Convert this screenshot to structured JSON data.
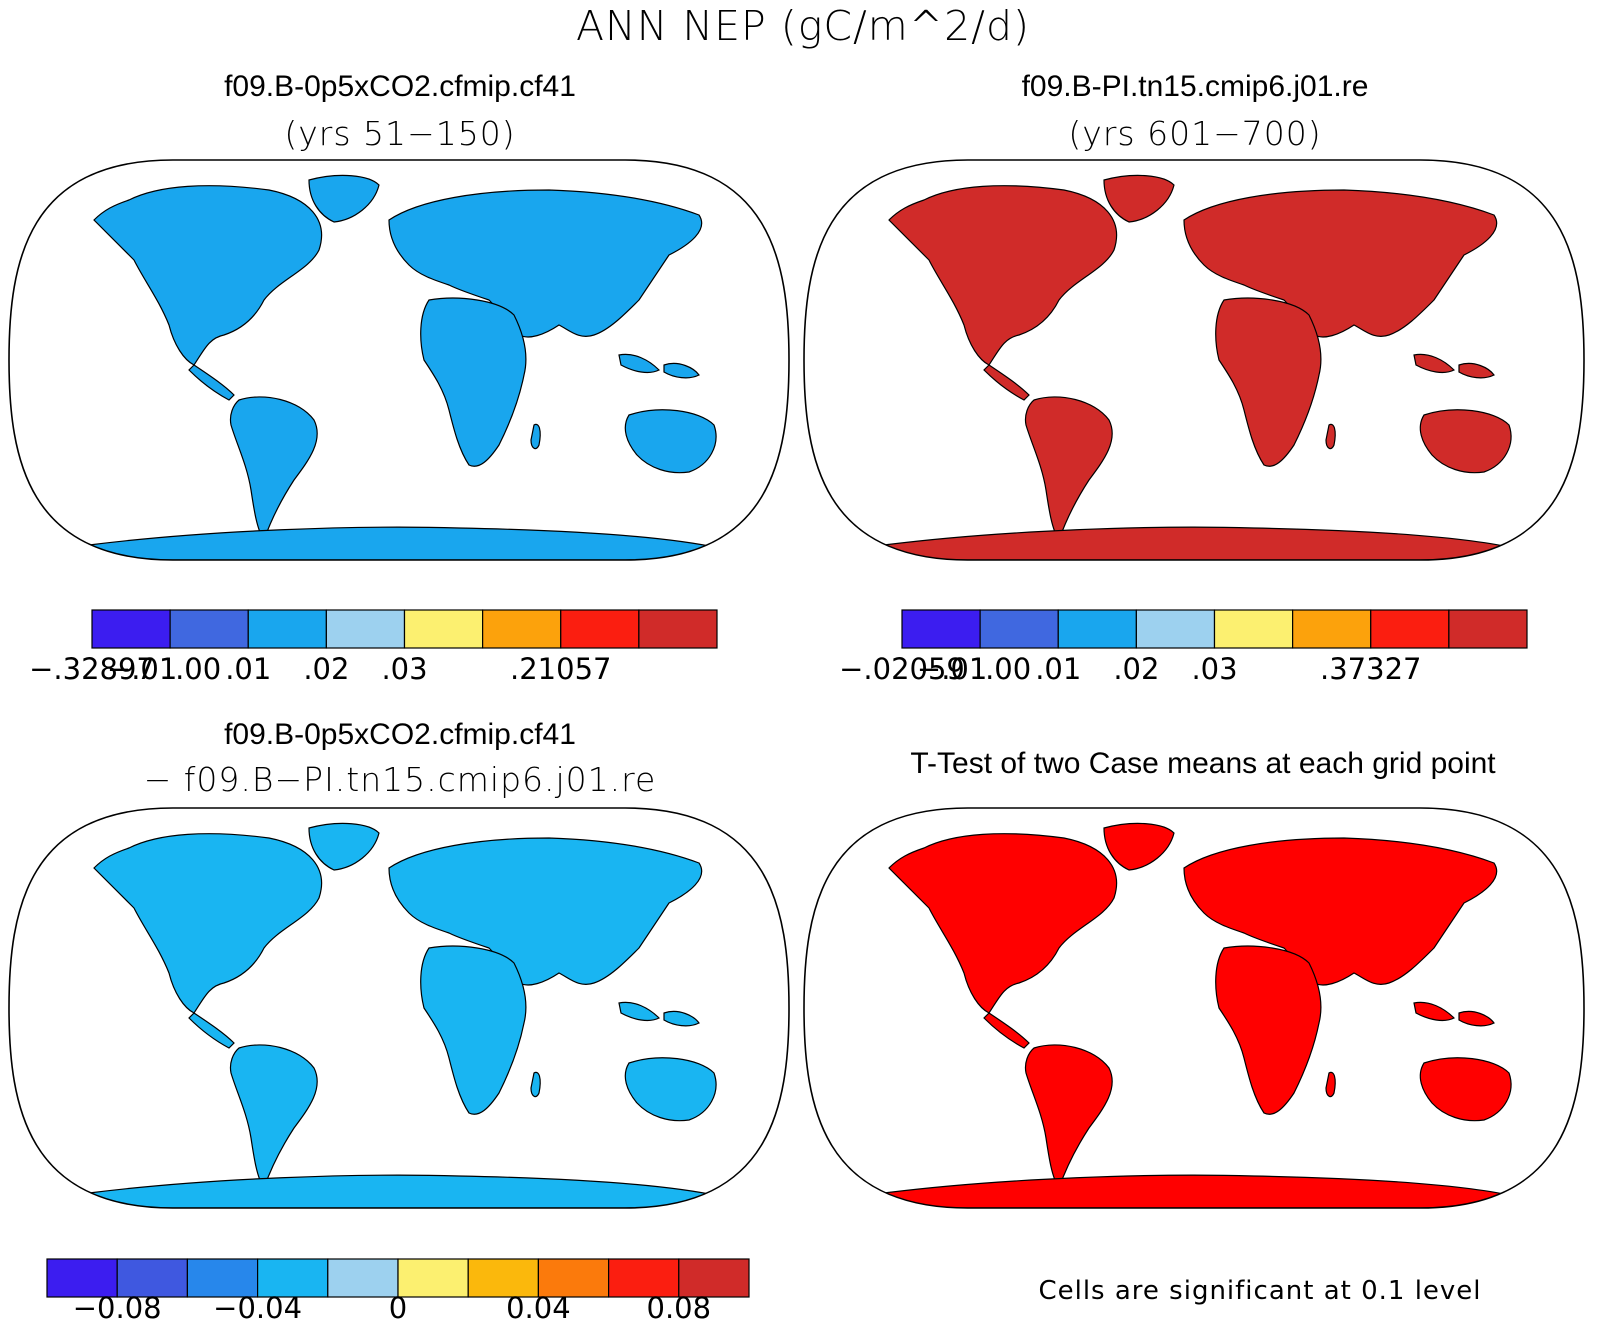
{
  "title": "ANN NEP (gC/m^2/d)",
  "panels": [
    {
      "id": "case1",
      "title": "f09.B-0p5xCO2.cfmip.cf41",
      "subtitle": "(yrs 51−150)",
      "colorbar": {
        "colors": [
          "#3c1df0",
          "#4068e0",
          "#19a6ee",
          "#9dd1ef",
          "#fcf070",
          "#fca20c",
          "#fb1e10",
          "#d02b29"
        ],
        "labels": [
          "−.32897",
          "−.01",
          ".00",
          ".01",
          ".02",
          ".03",
          ".21057"
        ]
      }
    },
    {
      "id": "case2",
      "title": "f09.B-PI.tn15.cmip6.j01.re",
      "subtitle": "(yrs 601−700)",
      "colorbar": {
        "colors": [
          "#3c1df0",
          "#4068e0",
          "#19a6ee",
          "#9dd1ef",
          "#fcf070",
          "#fca20c",
          "#fb1e10",
          "#d02b29"
        ],
        "labels": [
          "−.02059",
          "−.01",
          ".00",
          ".01",
          ".02",
          ".03",
          ".37327"
        ]
      }
    },
    {
      "id": "diff",
      "title": "f09.B-0p5xCO2.cfmip.cf41",
      "subtitle": "− f09.B−PI.tn15.cmip6.j01.re",
      "colorbar": {
        "colors": [
          "#3c1df0",
          "#3f58e0",
          "#2787eb",
          "#19b5f2",
          "#9dd1ef",
          "#fcf070",
          "#fbb80c",
          "#fb7a0c",
          "#fb1e10",
          "#d02b29"
        ],
        "labels": [
          "−0.08",
          "−0.04",
          "0",
          "0.04",
          "0.08"
        ]
      }
    },
    {
      "id": "ttest",
      "title": "T-Test of two Case means at each grid point",
      "note": "Cells are significant at 0.1 level",
      "significant_color": "#ff0000"
    }
  ],
  "map": {
    "projection": "Robinson",
    "land_outline_color": "#000000"
  }
}
